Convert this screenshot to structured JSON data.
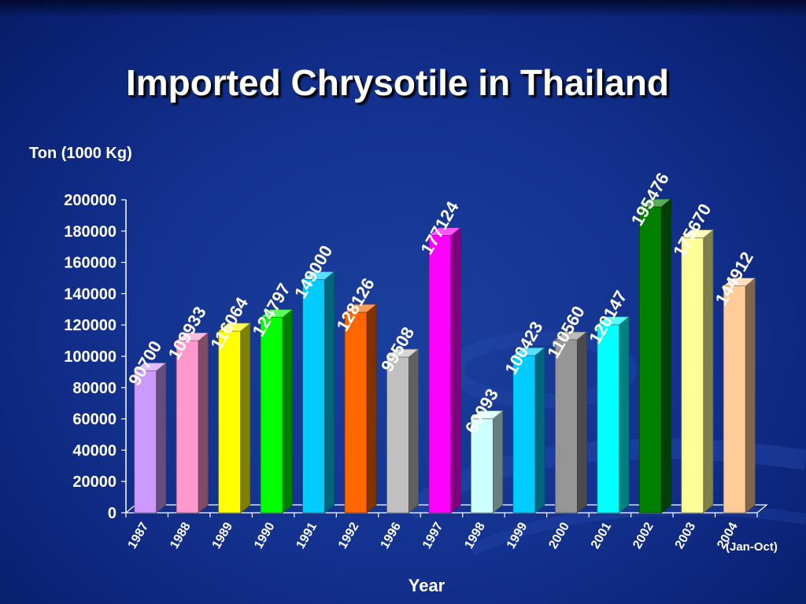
{
  "chart_data": {
    "type": "bar",
    "title": "Imported Chrysotile in Thailand",
    "ylabel": "Ton (1000 Kg)",
    "xlabel": "Year",
    "x_note": "(Jan-Oct)",
    "categories": [
      "1987",
      "1988",
      "1989",
      "1990",
      "1991",
      "1992",
      "1996",
      "1997",
      "1998",
      "1999",
      "2000",
      "2001",
      "2002",
      "2003",
      "2004"
    ],
    "values": [
      90700,
      109933,
      116064,
      124797,
      149000,
      128126,
      99508,
      177124,
      60093,
      100423,
      110560,
      120147,
      195476,
      175670,
      144912
    ],
    "value_labels": [
      "90700",
      "109933",
      "116064",
      "124797",
      "149000",
      "128126",
      "99508",
      "177124",
      "60093",
      "100423",
      "110560",
      "120147",
      "195476",
      "175670",
      "144912"
    ],
    "colors": [
      "#cc99ff",
      "#ff99cc",
      "#ffff00",
      "#00ff00",
      "#00ccff",
      "#ff6600",
      "#c0c0c0",
      "#ff00ff",
      "#ccffff",
      "#00ccff",
      "#969696",
      "#00ffff",
      "#008000",
      "#ffff99",
      "#ffcc99"
    ],
    "ylim": [
      0,
      200000
    ],
    "yticks": [
      "0",
      "20000",
      "40000",
      "60000",
      "80000",
      "100000",
      "120000",
      "140000",
      "160000",
      "180000",
      "200000"
    ],
    "grid": false,
    "legend": "none"
  }
}
